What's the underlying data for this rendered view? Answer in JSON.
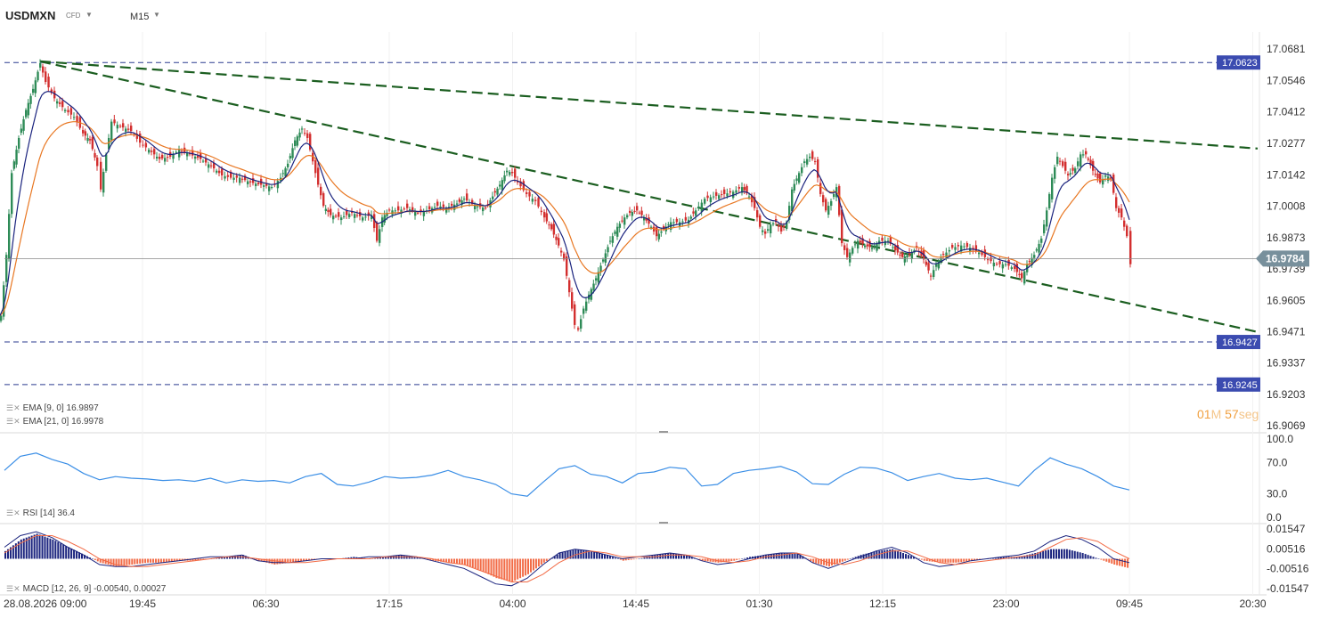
{
  "header": {
    "symbol": "USDMXN",
    "instrument_type": "CFD",
    "timeframe": "M15"
  },
  "timer": {
    "minutes": "01",
    "m_unit": "M",
    "seconds": "57",
    "s_unit": "seg"
  },
  "colors": {
    "up": "#2e8b57",
    "down": "#d32f2f",
    "ema9": "#1a237e",
    "ema21": "#e87722",
    "trend": "#1b5e20",
    "level_line": "#2b3b8f",
    "level_tag": "#3b4bb0",
    "price_tag": "#78909c",
    "rsi": "#3a8ee6",
    "macd_pos": "#1a237e",
    "macd_neg": "#f26b46"
  },
  "indicators": {
    "ema9": "EMA [9, 0] 16.9897",
    "ema21": "EMA [21, 0] 16.9978",
    "rsi": "RSI [14] 36.4",
    "macd": "MACD [12, 26, 9] -0.00540, 0.00027"
  },
  "chart_data": [
    {
      "type": "candlestick",
      "title": "USDMXN CFD M15",
      "y_range": [
        16.9069,
        17.0681
      ],
      "y_ticks": [
        "17.0681",
        "17.0546",
        "17.0412",
        "17.0277",
        "17.0142",
        "17.0008",
        "16.9873",
        "16.9739",
        "16.9605",
        "16.9471",
        "16.9337",
        "16.9203",
        "16.9069"
      ],
      "x_ticks": [
        "28.08.2026 09:00",
        "19:45",
        "06:30",
        "17:15",
        "04:00",
        "14:45",
        "01:30",
        "12:15",
        "23:00",
        "09:45",
        "20:30"
      ],
      "current_price": "16.9784",
      "horizontal_levels": [
        "17.0623",
        "16.9427",
        "16.9245"
      ],
      "trendlines": [
        {
          "from_price": 17.0628,
          "to_price": 17.0255,
          "style": "dashed"
        },
        {
          "from_price": 17.0628,
          "to_price": 16.947,
          "style": "dashed"
        }
      ],
      "close_path": [
        [
          0,
          16.954
        ],
        [
          6,
          16.98
        ],
        [
          12,
          17.015
        ],
        [
          20,
          17.03
        ],
        [
          28,
          17.042
        ],
        [
          36,
          17.051
        ],
        [
          44,
          17.062
        ],
        [
          50,
          17.054
        ],
        [
          60,
          17.047
        ],
        [
          72,
          17.042
        ],
        [
          82,
          17.039
        ],
        [
          92,
          17.032
        ],
        [
          100,
          17.029
        ],
        [
          108,
          17.018
        ],
        [
          112,
          17.008
        ],
        [
          118,
          17.023
        ],
        [
          124,
          17.037
        ],
        [
          134,
          17.035
        ],
        [
          146,
          17.033
        ],
        [
          156,
          17.028
        ],
        [
          166,
          17.025
        ],
        [
          178,
          17.021
        ],
        [
          190,
          17.022
        ],
        [
          200,
          17.025
        ],
        [
          212,
          17.023
        ],
        [
          224,
          17.021
        ],
        [
          236,
          17.018
        ],
        [
          248,
          17.014
        ],
        [
          258,
          17.013
        ],
        [
          268,
          17.013
        ],
        [
          280,
          17.011
        ],
        [
          292,
          17.01
        ],
        [
          304,
          17.009
        ],
        [
          314,
          17.013
        ],
        [
          322,
          17.019
        ],
        [
          330,
          17.029
        ],
        [
          338,
          17.034
        ],
        [
          344,
          17.03
        ],
        [
          350,
          17.02
        ],
        [
          356,
          17.01
        ],
        [
          362,
          17.001
        ],
        [
          370,
          16.997
        ],
        [
          382,
          16.996
        ],
        [
          394,
          16.998
        ],
        [
          406,
          16.996
        ],
        [
          416,
          16.997
        ],
        [
          422,
          16.986
        ],
        [
          428,
          16.996
        ],
        [
          436,
          16.999
        ],
        [
          446,
          16.999
        ],
        [
          456,
          17.0
        ],
        [
          468,
          16.998
        ],
        [
          478,
          16.999
        ],
        [
          490,
          17.001
        ],
        [
          500,
          17.0
        ],
        [
          512,
          17.002
        ],
        [
          520,
          17.004
        ],
        [
          532,
          17.001
        ],
        [
          544,
          17.0
        ],
        [
          552,
          17.005
        ],
        [
          560,
          17.01
        ],
        [
          568,
          17.016
        ],
        [
          574,
          17.015
        ],
        [
          580,
          17.011
        ],
        [
          590,
          17.006
        ],
        [
          600,
          17.003
        ],
        [
          610,
          16.996
        ],
        [
          618,
          16.991
        ],
        [
          626,
          16.984
        ],
        [
          632,
          16.978
        ],
        [
          638,
          16.964
        ],
        [
          644,
          16.95
        ],
        [
          648,
          16.948
        ],
        [
          654,
          16.957
        ],
        [
          660,
          16.963
        ],
        [
          668,
          16.97
        ],
        [
          676,
          16.978
        ],
        [
          684,
          16.986
        ],
        [
          692,
          16.992
        ],
        [
          700,
          16.996
        ],
        [
          706,
          16.998
        ],
        [
          714,
          16.999
        ],
        [
          722,
          16.996
        ],
        [
          730,
          16.992
        ],
        [
          736,
          16.988
        ],
        [
          744,
          16.991
        ],
        [
          752,
          16.994
        ],
        [
          762,
          16.994
        ],
        [
          772,
          16.995
        ],
        [
          780,
          16.999
        ],
        [
          790,
          17.004
        ],
        [
          800,
          17.005
        ],
        [
          812,
          17.006
        ],
        [
          822,
          17.007
        ],
        [
          832,
          17.009
        ],
        [
          840,
          17.005
        ],
        [
          846,
          17.0
        ],
        [
          852,
          16.992
        ],
        [
          858,
          16.989
        ],
        [
          864,
          16.993
        ],
        [
          870,
          16.994
        ],
        [
          876,
          16.99
        ],
        [
          882,
          16.994
        ],
        [
          888,
          17.008
        ],
        [
          896,
          17.015
        ],
        [
          902,
          17.02
        ],
        [
          908,
          17.022
        ],
        [
          914,
          17.02
        ],
        [
          920,
          17.006
        ],
        [
          926,
          16.999
        ],
        [
          932,
          17.003
        ],
        [
          938,
          17.009
        ],
        [
          944,
          16.985
        ],
        [
          950,
          16.979
        ],
        [
          956,
          16.983
        ],
        [
          962,
          16.986
        ],
        [
          970,
          16.984
        ],
        [
          978,
          16.983
        ],
        [
          986,
          16.986
        ],
        [
          996,
          16.986
        ],
        [
          1004,
          16.982
        ],
        [
          1012,
          16.979
        ],
        [
          1020,
          16.98
        ],
        [
          1028,
          16.983
        ],
        [
          1036,
          16.978
        ],
        [
          1044,
          16.971
        ],
        [
          1050,
          16.976
        ],
        [
          1058,
          16.98
        ],
        [
          1068,
          16.983
        ],
        [
          1078,
          16.984
        ],
        [
          1088,
          16.983
        ],
        [
          1098,
          16.981
        ],
        [
          1108,
          16.978
        ],
        [
          1118,
          16.976
        ],
        [
          1128,
          16.976
        ],
        [
          1138,
          16.974
        ],
        [
          1146,
          16.97
        ],
        [
          1152,
          16.976
        ],
        [
          1160,
          16.98
        ],
        [
          1168,
          16.987
        ],
        [
          1174,
          16.999
        ],
        [
          1180,
          17.013
        ],
        [
          1186,
          17.022
        ],
        [
          1192,
          17.018
        ],
        [
          1198,
          17.014
        ],
        [
          1206,
          17.017
        ],
        [
          1212,
          17.023
        ],
        [
          1218,
          17.023
        ],
        [
          1226,
          17.016
        ],
        [
          1234,
          17.011
        ],
        [
          1240,
          17.014
        ],
        [
          1246,
          17.013
        ],
        [
          1252,
          17.0
        ],
        [
          1258,
          16.996
        ],
        [
          1264,
          16.988
        ],
        [
          1268,
          16.976
        ]
      ]
    },
    {
      "type": "line",
      "title": "RSI",
      "y_range": [
        0,
        100
      ],
      "y_ticks": [
        "100.0",
        "70.0",
        "30.0",
        "0.0"
      ],
      "values": [
        60,
        78,
        82,
        74,
        68,
        56,
        48,
        52,
        50,
        49,
        47,
        48,
        46,
        50,
        44,
        48,
        46,
        47,
        44,
        52,
        56,
        42,
        40,
        45,
        52,
        50,
        51,
        54,
        60,
        52,
        48,
        42,
        30,
        27,
        45,
        62,
        66,
        55,
        52,
        44,
        56,
        58,
        64,
        62,
        40,
        42,
        56,
        60,
        62,
        65,
        58,
        43,
        42,
        55,
        64,
        63,
        57,
        47,
        52,
        56,
        50,
        48,
        50,
        45,
        40,
        60,
        76,
        68,
        62,
        52,
        40,
        35
      ]
    },
    {
      "type": "bar",
      "title": "MACD",
      "y_range": [
        -0.01547,
        0.01547
      ],
      "y_ticks": [
        "0.01547",
        "0.00516",
        "-0.00516",
        "-0.01547"
      ],
      "values": [
        0.004,
        0.01,
        0.013,
        0.01,
        0.006,
        0.002,
        -0.002,
        -0.004,
        -0.003,
        -0.002,
        -0.002,
        -0.001,
        -0.001,
        0.0,
        0.001,
        0.002,
        -0.001,
        -0.003,
        -0.002,
        -0.001,
        0.0,
        0.0,
        0.001,
        0.0,
        0.001,
        0.002,
        0.001,
        -0.001,
        -0.002,
        -0.003,
        -0.006,
        -0.01,
        -0.012,
        -0.008,
        -0.002,
        0.003,
        0.005,
        0.004,
        0.002,
        -0.001,
        0.0,
        0.002,
        0.003,
        0.002,
        -0.001,
        -0.002,
        -0.001,
        0.001,
        0.002,
        0.003,
        0.003,
        -0.002,
        -0.004,
        -0.001,
        0.002,
        0.004,
        0.005,
        0.002,
        -0.001,
        -0.002,
        -0.002,
        -0.001,
        0.0,
        0.001,
        0.001,
        0.003,
        0.005,
        0.005,
        0.003,
        0.0,
        -0.003,
        -0.005
      ],
      "series": [
        {
          "name": "MACD",
          "values": [
            0.006,
            0.012,
            0.014,
            0.011,
            0.006,
            0.002,
            -0.003,
            -0.004,
            -0.004,
            -0.003,
            -0.002,
            -0.001,
            0.0,
            0.001,
            0.001,
            0.002,
            -0.001,
            -0.002,
            -0.002,
            -0.001,
            0.0,
            0.0,
            0.0,
            0.001,
            0.001,
            0.002,
            0.001,
            -0.001,
            -0.003,
            -0.005,
            -0.009,
            -0.013,
            -0.014,
            -0.01,
            -0.003,
            0.003,
            0.005,
            0.004,
            0.002,
            0.0,
            0.001,
            0.002,
            0.003,
            0.002,
            -0.001,
            -0.003,
            -0.002,
            0.0,
            0.002,
            0.003,
            0.003,
            -0.002,
            -0.005,
            -0.002,
            0.001,
            0.004,
            0.006,
            0.003,
            -0.002,
            -0.004,
            -0.003,
            -0.001,
            0.0,
            0.001,
            0.002,
            0.004,
            0.009,
            0.012,
            0.01,
            0.006,
            0.0,
            -0.002
          ]
        },
        {
          "name": "Signal",
          "values": [
            0.003,
            0.008,
            0.012,
            0.012,
            0.009,
            0.005,
            0.0,
            -0.003,
            -0.004,
            -0.004,
            -0.003,
            -0.002,
            -0.001,
            0.0,
            0.001,
            0.001,
            0.0,
            -0.001,
            -0.002,
            -0.002,
            -0.001,
            0.0,
            0.0,
            0.0,
            0.001,
            0.001,
            0.001,
            0.0,
            -0.002,
            -0.003,
            -0.006,
            -0.009,
            -0.012,
            -0.012,
            -0.008,
            -0.002,
            0.002,
            0.004,
            0.003,
            0.001,
            0.001,
            0.001,
            0.002,
            0.002,
            0.001,
            -0.001,
            -0.002,
            -0.001,
            0.001,
            0.002,
            0.003,
            0.001,
            -0.002,
            -0.003,
            -0.001,
            0.002,
            0.004,
            0.004,
            0.001,
            -0.002,
            -0.003,
            -0.002,
            -0.001,
            0.0,
            0.001,
            0.002,
            0.006,
            0.01,
            0.011,
            0.009,
            0.004,
            0.0
          ]
        }
      ]
    }
  ]
}
